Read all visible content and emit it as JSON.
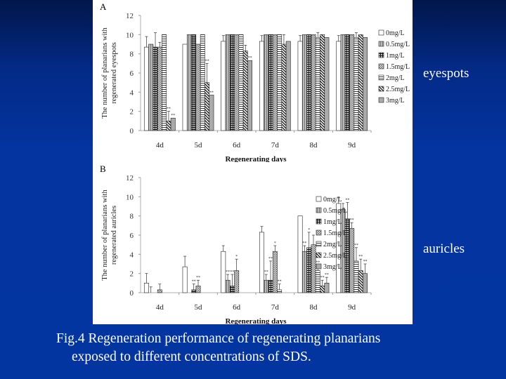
{
  "slide": {
    "side_labels": {
      "eyespots": "eyespots",
      "auricles": "auricles"
    },
    "caption": {
      "line1": "Fig.4  Regeneration performance of regenerating planarians",
      "line2": "exposed to different concentrations of SDS."
    },
    "colors": {
      "background_top": "#02164a",
      "background": "#0335a0",
      "text": "#ffffff",
      "figure_bg": "#ffffff"
    }
  },
  "chart_data": [
    {
      "panel": "A",
      "type": "bar",
      "title": "",
      "xlabel": "Regenerating days",
      "ylabel": "The number of planarians with regenerated eyespots",
      "ylim": [
        0,
        12
      ],
      "yticks": [
        0,
        2,
        4,
        6,
        8,
        10,
        12
      ],
      "grid": false,
      "legend_position": "right",
      "categories": [
        "4d",
        "5d",
        "6d",
        "7d",
        "8d",
        "9d"
      ],
      "series": [
        {
          "name": "0mg/L",
          "values": [
            8.7,
            9.0,
            9.3,
            9.3,
            9.3,
            9.3
          ],
          "errors": [
            1.1,
            0,
            0.6,
            0.6,
            0.6,
            0.6
          ],
          "sig": [
            "",
            "",
            "",
            "",
            "",
            ""
          ]
        },
        {
          "name": "0.5mg/L",
          "values": [
            9.0,
            10,
            10,
            10,
            10,
            10
          ],
          "errors": [
            0,
            0,
            0,
            0,
            0,
            0
          ],
          "sig": [
            "",
            "",
            "",
            "",
            "",
            ""
          ]
        },
        {
          "name": "1mg/L",
          "values": [
            8.7,
            10,
            10,
            10,
            10,
            10
          ],
          "errors": [
            1.5,
            0,
            0,
            0,
            0,
            0
          ],
          "sig": [
            "",
            "",
            "",
            "",
            "",
            ""
          ]
        },
        {
          "name": "1.5mg/L",
          "values": [
            8.7,
            9.0,
            10,
            10,
            10,
            10
          ],
          "errors": [
            0.5,
            0,
            0,
            0,
            0,
            0
          ],
          "sig": [
            "",
            "",
            "",
            "",
            "",
            ""
          ]
        },
        {
          "name": "2mg/L",
          "values": [
            10,
            10,
            10,
            10,
            9.7,
            9.7
          ],
          "errors": [
            0,
            0,
            0,
            0,
            0.5,
            0.5
          ],
          "sig": [
            "",
            "",
            "",
            "",
            "",
            ""
          ]
        },
        {
          "name": "2.5mg/L",
          "values": [
            1.0,
            5.0,
            8.3,
            9.0,
            10,
            10
          ],
          "errors": [
            1.0,
            2.0,
            0.6,
            1.0,
            0,
            0
          ],
          "sig": [
            "**",
            "**",
            "",
            "",
            "",
            ""
          ]
        },
        {
          "name": "3mg/L",
          "values": [
            1.3,
            3.7,
            7.3,
            9.3,
            9.7,
            9.7
          ],
          "errors": [
            0,
            0,
            0,
            0,
            0,
            0
          ],
          "sig": [
            "**",
            "**",
            "**",
            "",
            "",
            ""
          ]
        }
      ]
    },
    {
      "panel": "B",
      "type": "bar",
      "title": "",
      "xlabel": "Regenerating days",
      "ylabel": "The number of planarians with regenerated auricles",
      "ylim": [
        0,
        12
      ],
      "yticks": [
        0,
        2,
        4,
        6,
        8,
        10,
        12
      ],
      "grid": false,
      "legend_position": "right",
      "categories": [
        "4d",
        "5d",
        "6d",
        "7d",
        "8d",
        "9d"
      ],
      "series": [
        {
          "name": "0mg/L",
          "values": [
            1.0,
            2.7,
            4.3,
            6.3,
            8.0,
            9.3
          ],
          "errors": [
            1.0,
            1.1,
            0.6,
            0.6,
            0,
            0.6
          ],
          "sig": [
            "",
            "",
            "",
            "",
            "",
            ""
          ]
        },
        {
          "name": "0.5mg/L",
          "values": [
            0,
            0,
            1.3,
            1.3,
            4.3,
            8.7
          ],
          "errors": [
            0.6,
            0,
            0.6,
            0.6,
            0.6,
            0.6
          ],
          "sig": [
            "",
            "",
            "**",
            "**",
            "**",
            ""
          ]
        },
        {
          "name": "1mg/L",
          "values": [
            0,
            0.3,
            0.7,
            1.3,
            4.7,
            7.7
          ],
          "errors": [
            0,
            0.6,
            1.2,
            2.0,
            1.6,
            1.7
          ],
          "sig": [
            "",
            "**",
            "**",
            "**",
            "*",
            "**"
          ]
        },
        {
          "name": "1.5mg/L",
          "values": [
            0.3,
            0.7,
            2.3,
            4.3,
            5.0,
            6.7
          ],
          "errors": [
            0.6,
            0.6,
            1.2,
            0.6,
            1.0,
            0.6
          ],
          "sig": [
            "",
            "**",
            "*",
            "*",
            "",
            "**"
          ]
        },
        {
          "name": "2mg/L",
          "values": [
            0,
            0,
            0,
            0.3,
            2.3,
            3.3
          ],
          "errors": [
            0,
            0,
            0,
            0.6,
            0.6,
            1.4
          ],
          "sig": [
            "",
            "",
            "",
            "**",
            "**",
            "**"
          ]
        },
        {
          "name": "2.5mg/L",
          "values": [
            0,
            0,
            0,
            0,
            0.7,
            2.3
          ],
          "errors": [
            0,
            0,
            0,
            0,
            0.6,
            1.2
          ],
          "sig": [
            "",
            "",
            "",
            "",
            "**",
            "**"
          ]
        },
        {
          "name": "3mg/L",
          "values": [
            0,
            0,
            0,
            0,
            1.0,
            2.0
          ],
          "errors": [
            0,
            0,
            0,
            0,
            0.6,
            1.0
          ],
          "sig": [
            "",
            "",
            "",
            "",
            "**",
            "**"
          ]
        }
      ]
    }
  ]
}
